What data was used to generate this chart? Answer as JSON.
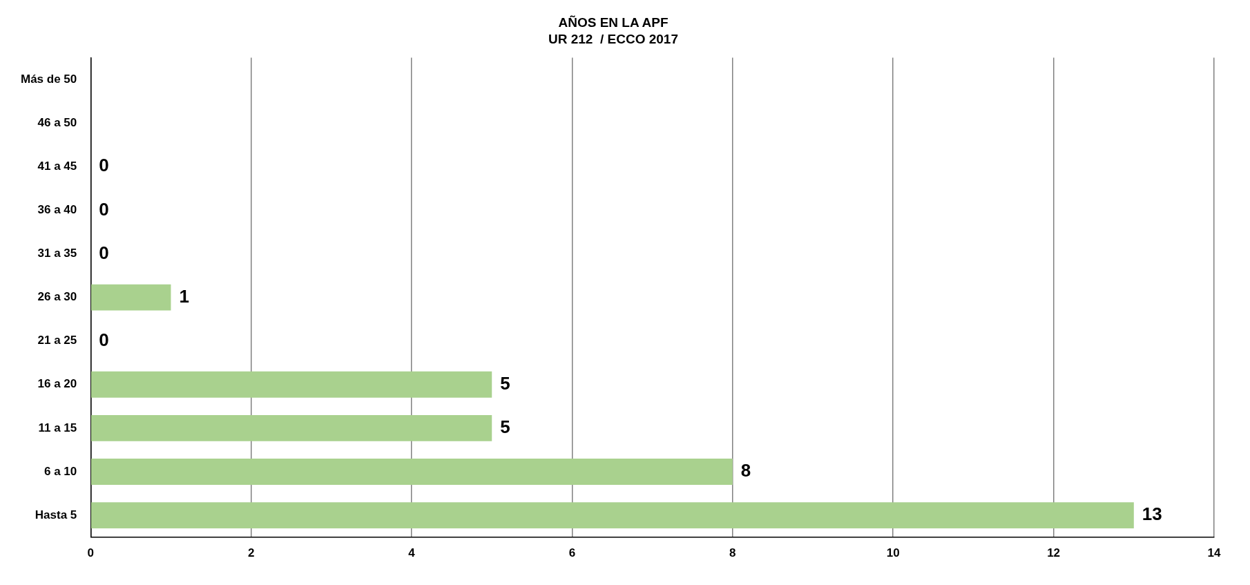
{
  "chart_data": {
    "type": "bar",
    "orientation": "horizontal",
    "title": "AÑOS EN LA APF",
    "subtitle": "UR 212  / ECCO 2017",
    "categories": [
      "Más de 50",
      "46 a 50",
      "41 a 45",
      "36 a 40",
      "31 a 35",
      "26 a 30",
      "21 a 25",
      "16 a 20",
      "11 a 15",
      "6 a 10",
      "Hasta 5"
    ],
    "values": [
      null,
      null,
      0,
      0,
      0,
      1,
      0,
      5,
      5,
      8,
      13
    ],
    "color": "#a9d18e",
    "xlim": [
      0,
      14
    ],
    "xticks": [
      0,
      2,
      4,
      6,
      8,
      10,
      12,
      14
    ],
    "grid": "x",
    "legend": false,
    "data_labels": true
  }
}
